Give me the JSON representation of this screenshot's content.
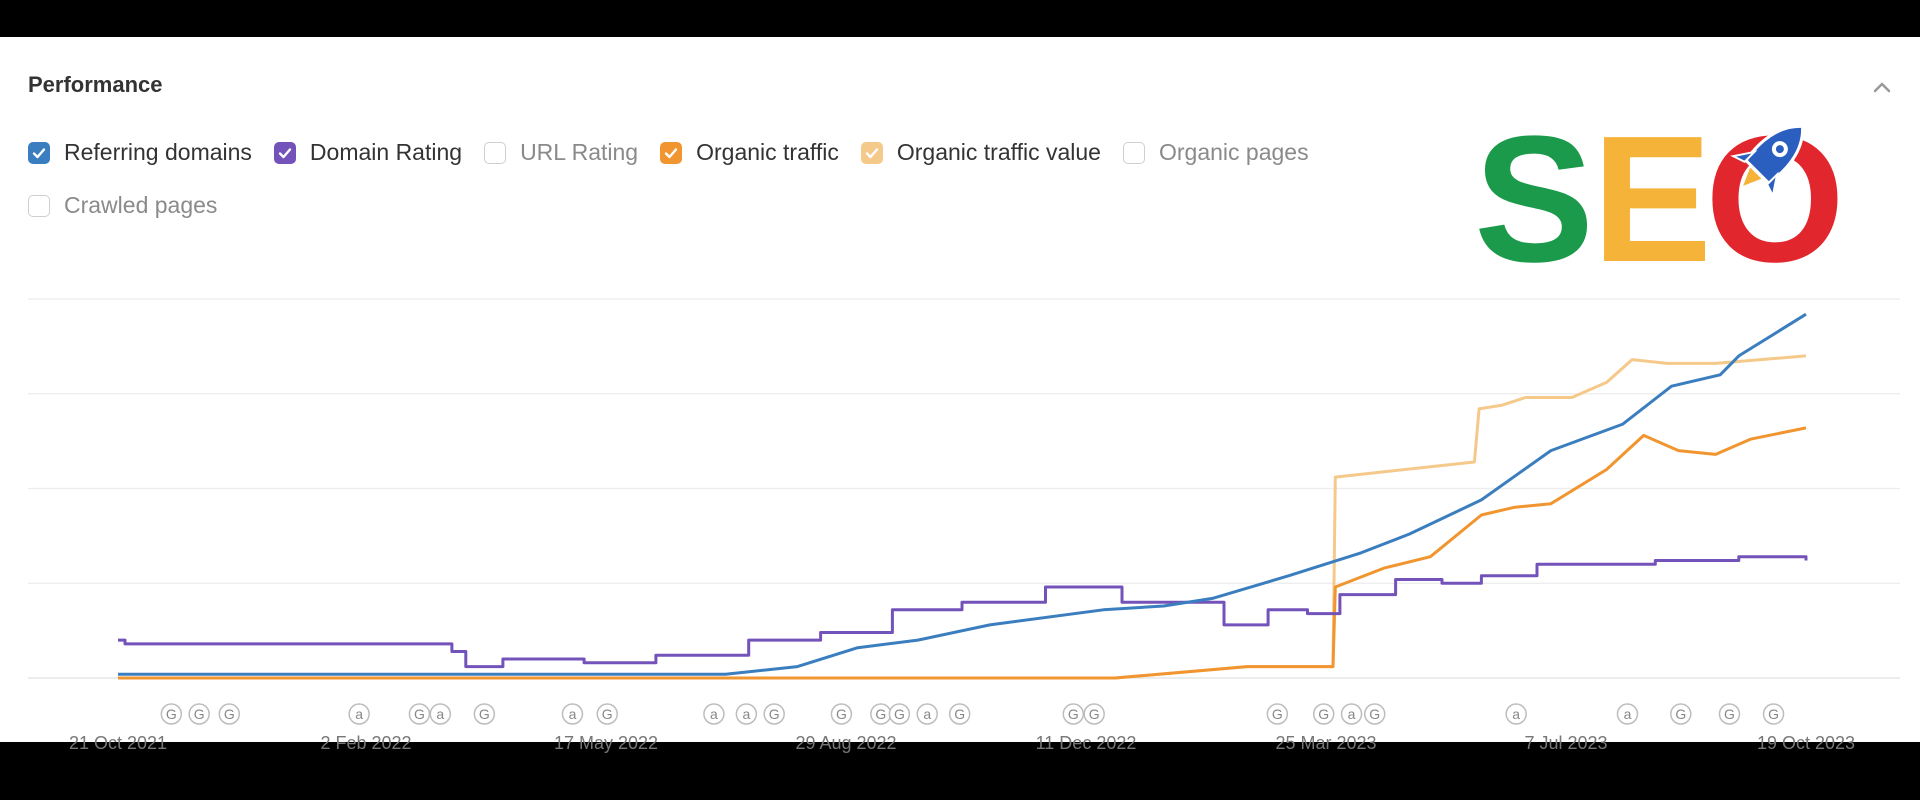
{
  "header": {
    "title": "Performance"
  },
  "legend": [
    {
      "label": "Referring domains",
      "checked": true,
      "color": "#3a7ebf"
    },
    {
      "label": "Domain Rating",
      "checked": true,
      "color": "#7353ba"
    },
    {
      "label": "URL Rating",
      "checked": false,
      "color": "#cccccc"
    },
    {
      "label": "Organic traffic",
      "checked": true,
      "color": "#f0952f"
    },
    {
      "label": "Organic traffic value",
      "checked": true,
      "color": "#f5c98a"
    },
    {
      "label": "Organic pages",
      "checked": false,
      "color": "#cccccc"
    },
    {
      "label": "Crawled pages",
      "checked": false,
      "color": "#cccccc"
    }
  ],
  "logo": {
    "text": "SEO",
    "colors": [
      "#1a9a4a",
      "#f6b33a",
      "#e1262d",
      "#2a5fc0"
    ]
  },
  "icons": {
    "collapse": "chevron-up-icon",
    "logo_rocket": "rocket-icon"
  },
  "chart_data": {
    "type": "line",
    "x_ticks": [
      "21 Oct 2021",
      "2 Feb 2022",
      "17 May 2022",
      "29 Aug 2022",
      "11 Dec 2022",
      "25 Mar 2023",
      "7 Jul 2023",
      "19 Oct 2023"
    ],
    "x_range": [
      "2021-10-21",
      "2023-10-19"
    ],
    "y_range": [
      0,
      100
    ],
    "grid": true,
    "annotations": [
      {
        "date": "2021-11-13",
        "label": "G"
      },
      {
        "date": "2021-11-25",
        "label": "G"
      },
      {
        "date": "2021-12-08",
        "label": "G"
      },
      {
        "date": "2022-02-02",
        "label": "a"
      },
      {
        "date": "2022-02-28",
        "label": "G"
      },
      {
        "date": "2022-03-09",
        "label": "a"
      },
      {
        "date": "2022-03-28",
        "label": "G"
      },
      {
        "date": "2022-05-05",
        "label": "a"
      },
      {
        "date": "2022-05-20",
        "label": "G"
      },
      {
        "date": "2022-07-05",
        "label": "a"
      },
      {
        "date": "2022-07-19",
        "label": "a"
      },
      {
        "date": "2022-07-31",
        "label": "G"
      },
      {
        "date": "2022-08-29",
        "label": "G"
      },
      {
        "date": "2022-09-15",
        "label": "G"
      },
      {
        "date": "2022-09-23",
        "label": "G"
      },
      {
        "date": "2022-10-05",
        "label": "a"
      },
      {
        "date": "2022-10-19",
        "label": "G"
      },
      {
        "date": "2022-12-07",
        "label": "G"
      },
      {
        "date": "2022-12-16",
        "label": "G"
      },
      {
        "date": "2023-03-05",
        "label": "G"
      },
      {
        "date": "2023-03-25",
        "label": "G"
      },
      {
        "date": "2023-04-06",
        "label": "a"
      },
      {
        "date": "2023-04-16",
        "label": "G"
      },
      {
        "date": "2023-06-16",
        "label": "a"
      },
      {
        "date": "2023-08-03",
        "label": "a"
      },
      {
        "date": "2023-08-26",
        "label": "G"
      },
      {
        "date": "2023-09-16",
        "label": "G"
      },
      {
        "date": "2023-10-05",
        "label": "G"
      }
    ],
    "series": [
      {
        "name": "Referring domains",
        "color": "#3a7ebf",
        "step": false,
        "points": [
          [
            "2021-10-21",
            1
          ],
          [
            "2022-07-10",
            1
          ],
          [
            "2022-08-10",
            3
          ],
          [
            "2022-09-05",
            8
          ],
          [
            "2022-10-01",
            10
          ],
          [
            "2022-11-01",
            14
          ],
          [
            "2022-12-20",
            18
          ],
          [
            "2023-01-15",
            19
          ],
          [
            "2023-02-05",
            21
          ],
          [
            "2023-03-10",
            27
          ],
          [
            "2023-04-10",
            33
          ],
          [
            "2023-05-01",
            38
          ],
          [
            "2023-06-01",
            47
          ],
          [
            "2023-07-01",
            60
          ],
          [
            "2023-08-01",
            67
          ],
          [
            "2023-08-22",
            77
          ],
          [
            "2023-09-12",
            80
          ],
          [
            "2023-09-20",
            85
          ],
          [
            "2023-10-19",
            96
          ]
        ]
      },
      {
        "name": "Domain Rating",
        "color": "#7353ba",
        "step": true,
        "points": [
          [
            "2021-10-21",
            10
          ],
          [
            "2021-10-24",
            9
          ],
          [
            "2022-03-14",
            7
          ],
          [
            "2022-03-20",
            3
          ],
          [
            "2022-04-05",
            5
          ],
          [
            "2022-05-10",
            4
          ],
          [
            "2022-06-10",
            6
          ],
          [
            "2022-07-20",
            10
          ],
          [
            "2022-08-20",
            12
          ],
          [
            "2022-09-20",
            18
          ],
          [
            "2022-10-20",
            20
          ],
          [
            "2022-11-25",
            24
          ],
          [
            "2022-12-28",
            20
          ],
          [
            "2023-02-10",
            14
          ],
          [
            "2023-03-01",
            18
          ],
          [
            "2023-03-18",
            17
          ],
          [
            "2023-04-01",
            22
          ],
          [
            "2023-04-25",
            26
          ],
          [
            "2023-05-15",
            25
          ],
          [
            "2023-06-01",
            27
          ],
          [
            "2023-06-25",
            30
          ],
          [
            "2023-08-15",
            31
          ],
          [
            "2023-09-20",
            32
          ],
          [
            "2023-10-19",
            31
          ]
        ]
      },
      {
        "name": "Organic traffic",
        "color": "#f0952f",
        "step": false,
        "points": [
          [
            "2021-10-21",
            0
          ],
          [
            "2022-12-25",
            0
          ],
          [
            "2023-02-20",
            3
          ],
          [
            "2023-03-29",
            3
          ],
          [
            "2023-03-30",
            24
          ],
          [
            "2023-04-20",
            29
          ],
          [
            "2023-05-10",
            32
          ],
          [
            "2023-06-01",
            43
          ],
          [
            "2023-06-15",
            45
          ],
          [
            "2023-07-01",
            46
          ],
          [
            "2023-07-25",
            55
          ],
          [
            "2023-08-10",
            64
          ],
          [
            "2023-08-25",
            60
          ],
          [
            "2023-09-10",
            59
          ],
          [
            "2023-09-25",
            63
          ],
          [
            "2023-10-19",
            66
          ]
        ]
      },
      {
        "name": "Organic traffic value",
        "color": "#f5c98a",
        "step": false,
        "points": [
          [
            "2021-10-21",
            0
          ],
          [
            "2022-12-25",
            0
          ],
          [
            "2023-02-20",
            3
          ],
          [
            "2023-03-29",
            3
          ],
          [
            "2023-03-30",
            53
          ],
          [
            "2023-05-29",
            57
          ],
          [
            "2023-05-31",
            71
          ],
          [
            "2023-06-10",
            72
          ],
          [
            "2023-06-20",
            74
          ],
          [
            "2023-07-10",
            74
          ],
          [
            "2023-07-25",
            78
          ],
          [
            "2023-08-05",
            84
          ],
          [
            "2023-08-20",
            83
          ],
          [
            "2023-09-10",
            83
          ],
          [
            "2023-10-19",
            85
          ]
        ]
      }
    ]
  }
}
